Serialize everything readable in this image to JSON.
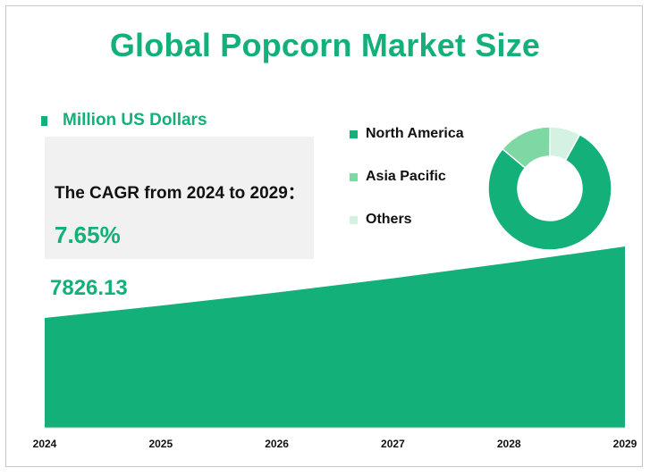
{
  "title": "Global Popcorn Market Size",
  "unit_legend": "Million US Dollars",
  "cagr": {
    "label": "The CAGR from 2024 to 2029：",
    "value": "7.65%"
  },
  "first_value_label": "7826.13",
  "colors": {
    "accent": "#13b07a",
    "north_america": "#13b07a",
    "asia_pacific": "#7ed8a3",
    "others": "#d5f1e2",
    "cagr_box": "#f1f1f1"
  },
  "chart_data": [
    {
      "type": "area",
      "x": [
        "2024",
        "2025",
        "2026",
        "2027",
        "2028",
        "2029"
      ],
      "series": [
        {
          "values": [
            7826.13,
            8425,
            9069,
            9763,
            10510,
            11314
          ]
        }
      ],
      "data_labels": [
        "7826.13"
      ],
      "grid": false
    },
    {
      "type": "pie",
      "donut": true,
      "labels": [
        "North America",
        "Asia Pacific",
        "Others"
      ],
      "values": [
        78,
        14,
        8
      ],
      "legend_placement": "left"
    }
  ]
}
